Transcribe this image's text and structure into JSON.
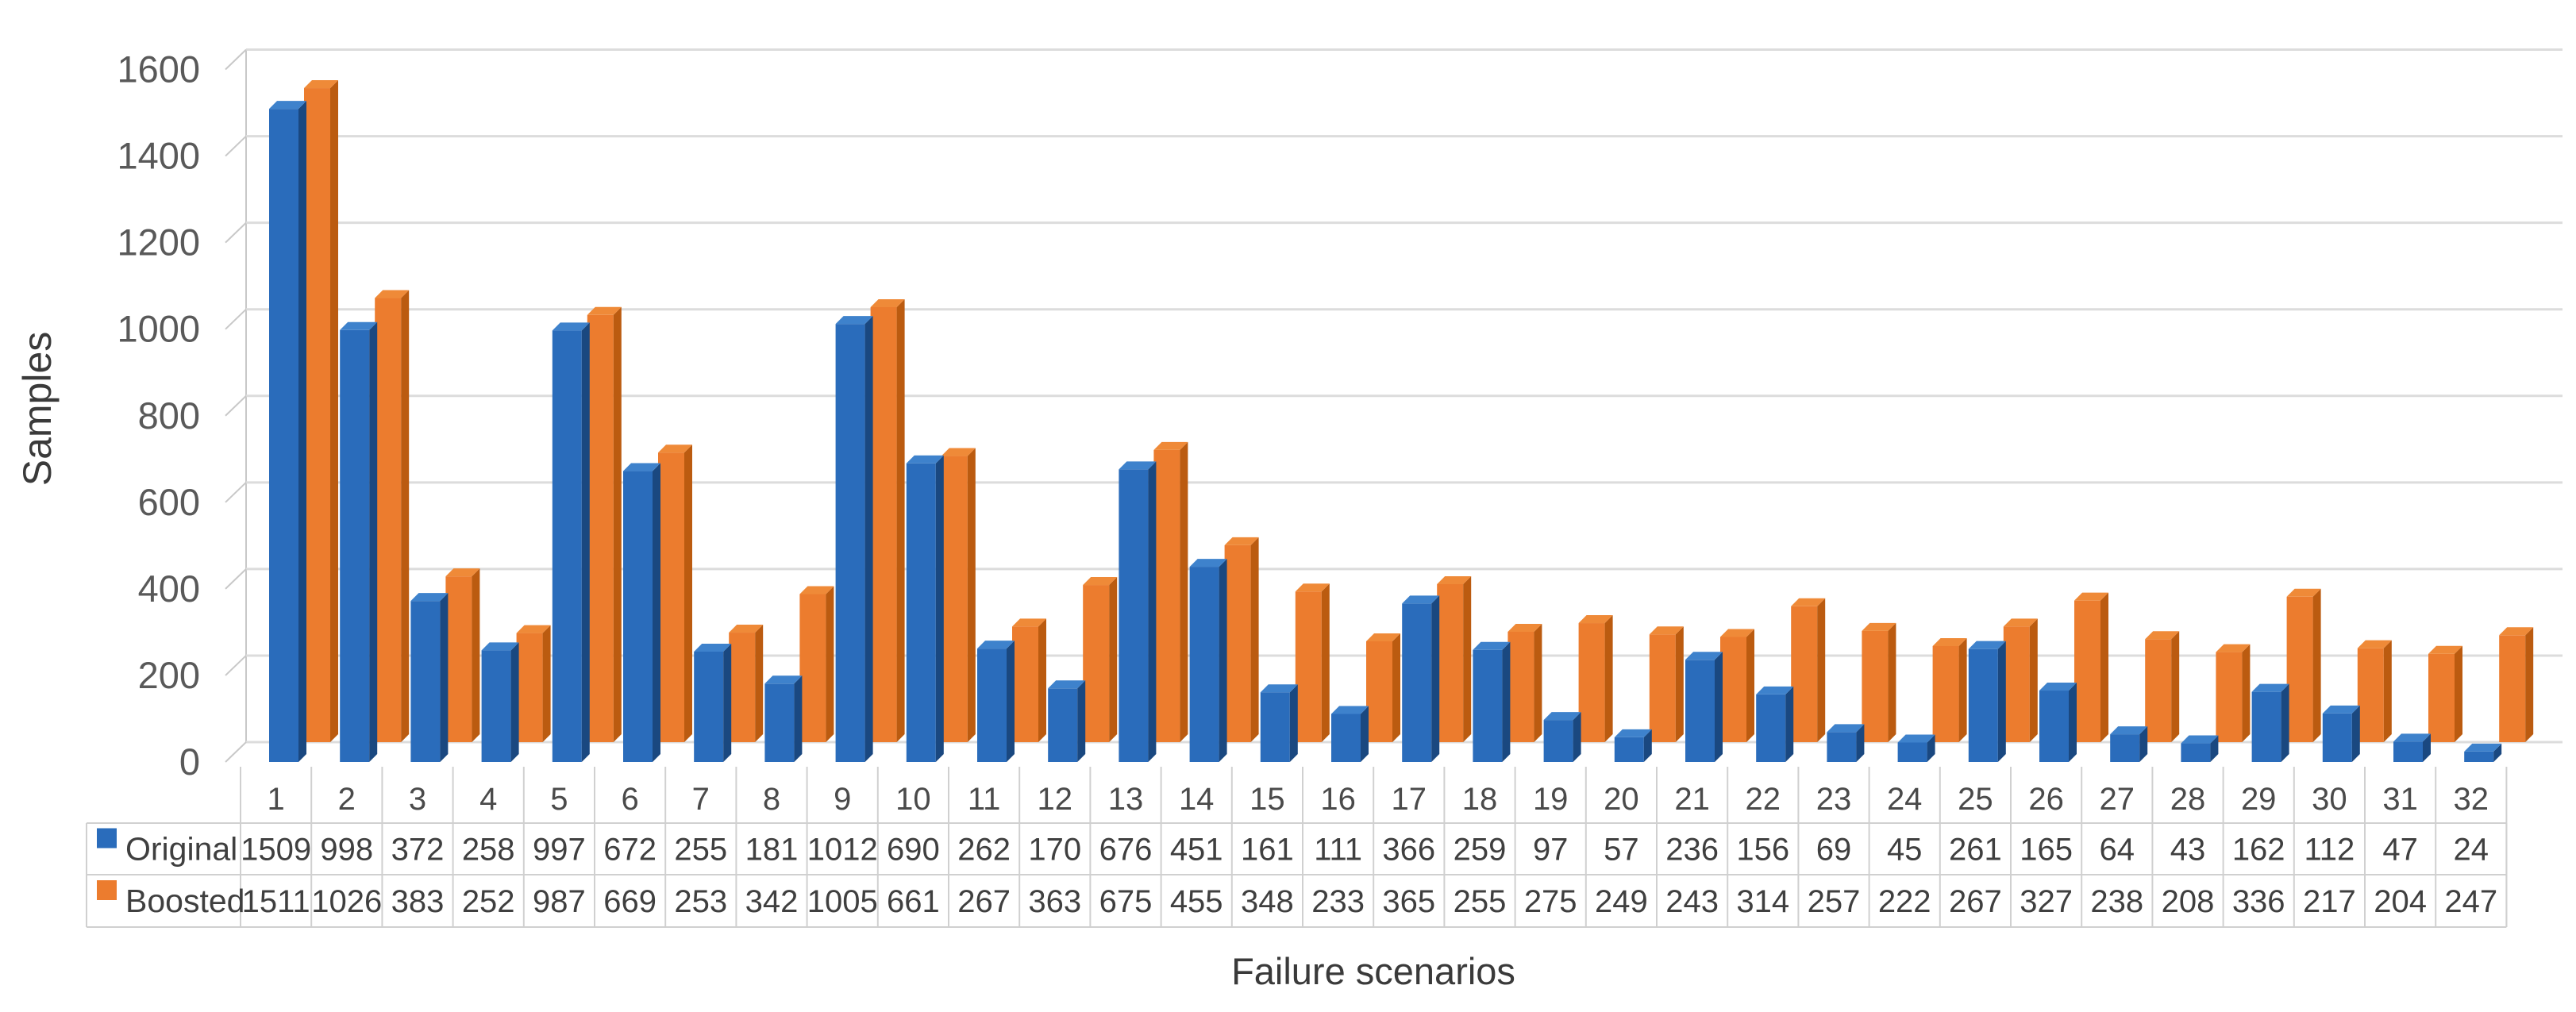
{
  "chart_data": {
    "type": "bar",
    "style": "3d-clustered-column",
    "title": "",
    "xlabel": "Failure scenarios",
    "ylabel": "Samples",
    "ylim": [
      0,
      1600
    ],
    "ytick_step": 200,
    "ytick_labels": [
      "0",
      "200",
      "400",
      "600",
      "800",
      "1000",
      "1200",
      "1400",
      "1600"
    ],
    "grid": true,
    "legend_position": "data-table-left",
    "data_table_shown": true,
    "categories": [
      "1",
      "2",
      "3",
      "4",
      "5",
      "6",
      "7",
      "8",
      "9",
      "10",
      "11",
      "12",
      "13",
      "14",
      "15",
      "16",
      "17",
      "18",
      "19",
      "20",
      "21",
      "22",
      "23",
      "24",
      "25",
      "26",
      "27",
      "28",
      "29",
      "30",
      "31",
      "32"
    ],
    "series": [
      {
        "name": "Original",
        "color": "#2A6CBB",
        "side_color": "#1A4880",
        "top_color": "#3E82CC",
        "values": [
          1509,
          998,
          372,
          258,
          997,
          672,
          255,
          181,
          1012,
          690,
          262,
          170,
          676,
          451,
          161,
          111,
          366,
          259,
          97,
          57,
          236,
          156,
          69,
          45,
          261,
          165,
          64,
          43,
          162,
          112,
          47,
          24
        ]
      },
      {
        "name": "Boosted",
        "color": "#EC7C2E",
        "side_color": "#BB5B10",
        "top_color": "#EF8A38",
        "values": [
          1511,
          1026,
          383,
          252,
          987,
          669,
          253,
          342,
          1005,
          661,
          267,
          363,
          675,
          455,
          348,
          233,
          365,
          255,
          275,
          249,
          243,
          314,
          257,
          222,
          267,
          327,
          238,
          208,
          336,
          217,
          204,
          247
        ]
      }
    ],
    "colors": {
      "gridline": "#DCDCDC",
      "wall_edge": "#C8C8C8",
      "table_border": "#D0D0D0",
      "axis_text": "#595959",
      "table_text": "#3F3F3F"
    }
  }
}
